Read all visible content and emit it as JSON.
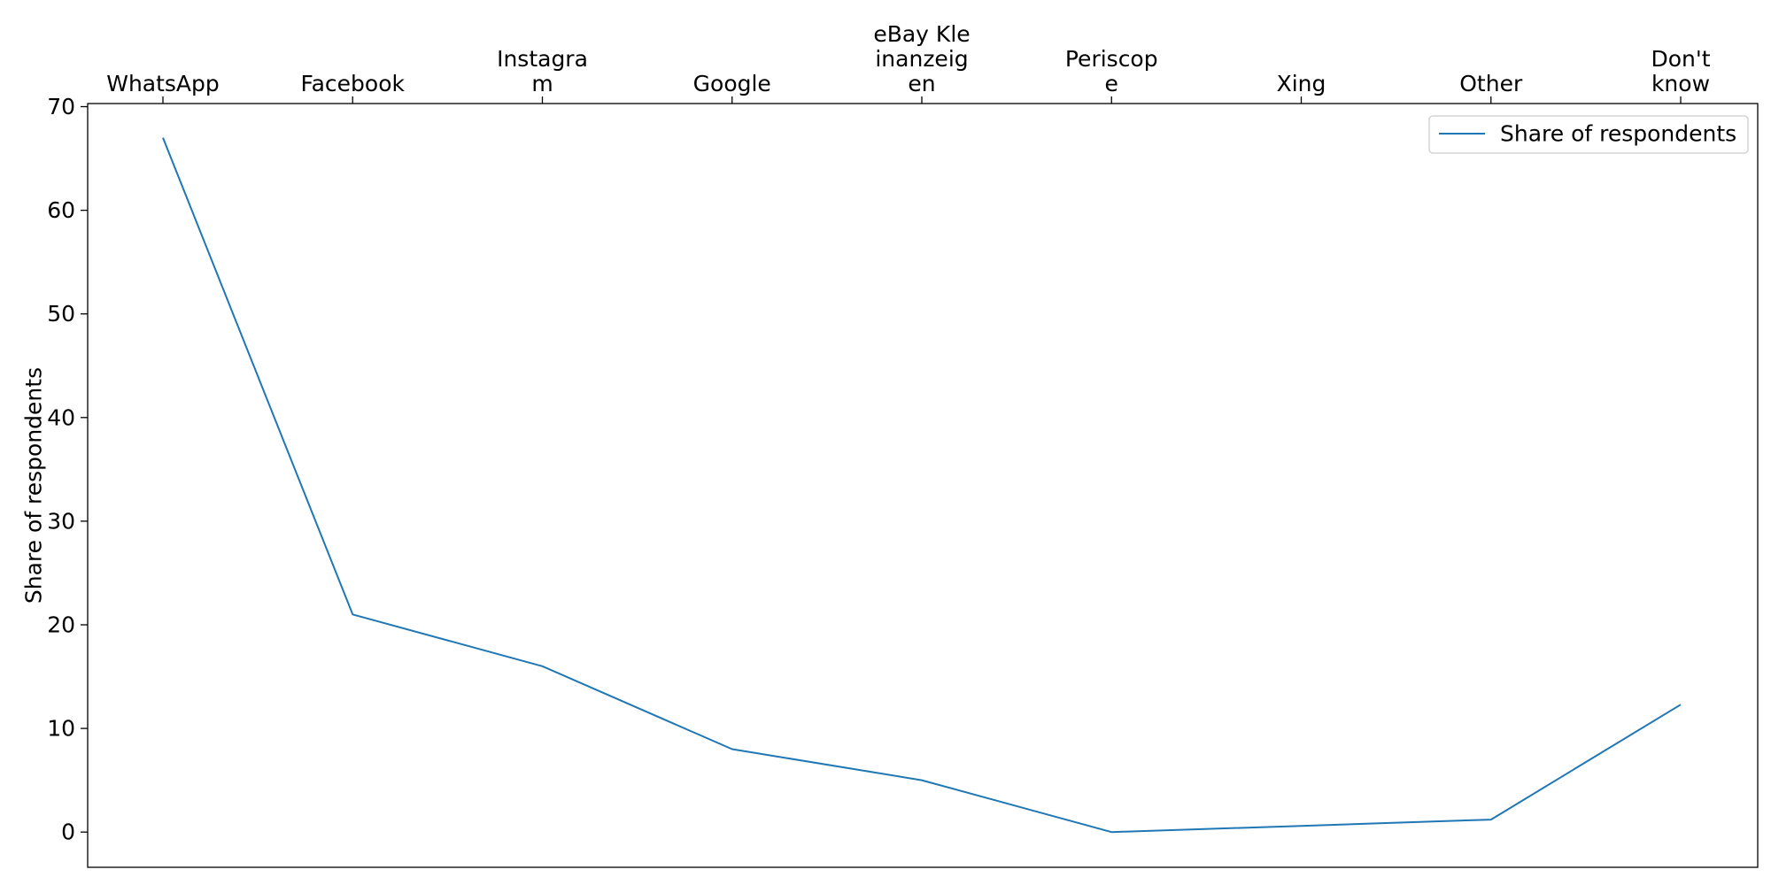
{
  "chart_data": {
    "type": "line",
    "categories": [
      [
        "WhatsApp"
      ],
      [
        "Facebook"
      ],
      [
        "Instagra",
        "m"
      ],
      [
        "Google"
      ],
      [
        "eBay Kle",
        "inanzeig",
        "en"
      ],
      [
        "Periscop",
        "e"
      ],
      [
        "Xing"
      ],
      [
        "Other"
      ],
      [
        "Don't",
        "know"
      ]
    ],
    "series": [
      {
        "name": "Share of respondents",
        "values": [
          67,
          21,
          16,
          8,
          5,
          0,
          0.6,
          1.2,
          12.3
        ],
        "color": "#1f77b4"
      }
    ],
    "ylabel": "Share of respondents",
    "xlabel": "",
    "ylim": [
      -3.4,
      70.3
    ],
    "yticks": [
      0,
      10,
      20,
      30,
      40,
      50,
      60,
      70
    ],
    "x_axis_position": "top",
    "legend_position": "top-right",
    "grid": false
  }
}
